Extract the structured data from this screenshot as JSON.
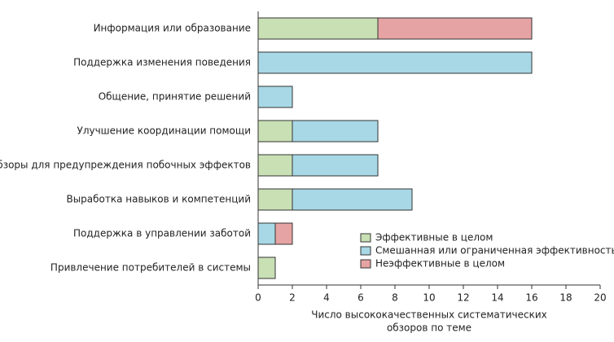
{
  "chart_data": {
    "type": "stacked-barh",
    "categories": [
      "Информация или образование",
      "Поддержка изменения поведения",
      "Общение, принятие решений",
      "Улучшение координации помощи",
      "Обзоры для предупреждения побочных эффектов",
      "Выработка навыков и компетенций",
      "Поддержка в управлении заботой",
      "Привлечение потребителей в системы"
    ],
    "series": [
      {
        "name": "Эффективные в целом",
        "color": "#c8e0b4",
        "values": [
          7,
          null,
          null,
          2,
          2,
          2,
          null,
          1
        ]
      },
      {
        "name": "Смешанная или ограниченная эффективность",
        "color": "#a8d8e6",
        "values": [
          null,
          16,
          2,
          5,
          5,
          7,
          1,
          null
        ]
      },
      {
        "name": "Неэффективные в целом",
        "color": "#e6a3a3",
        "values": [
          9,
          null,
          null,
          null,
          null,
          null,
          1,
          null
        ]
      }
    ],
    "xlabel": [
      "Число высококачественных систематических",
      "обзоров по теме"
    ],
    "xlim": [
      0,
      20
    ],
    "xticks": [
      0,
      2,
      4,
      6,
      8,
      10,
      12,
      14,
      16,
      18,
      20
    ],
    "legend": "lower-right"
  }
}
